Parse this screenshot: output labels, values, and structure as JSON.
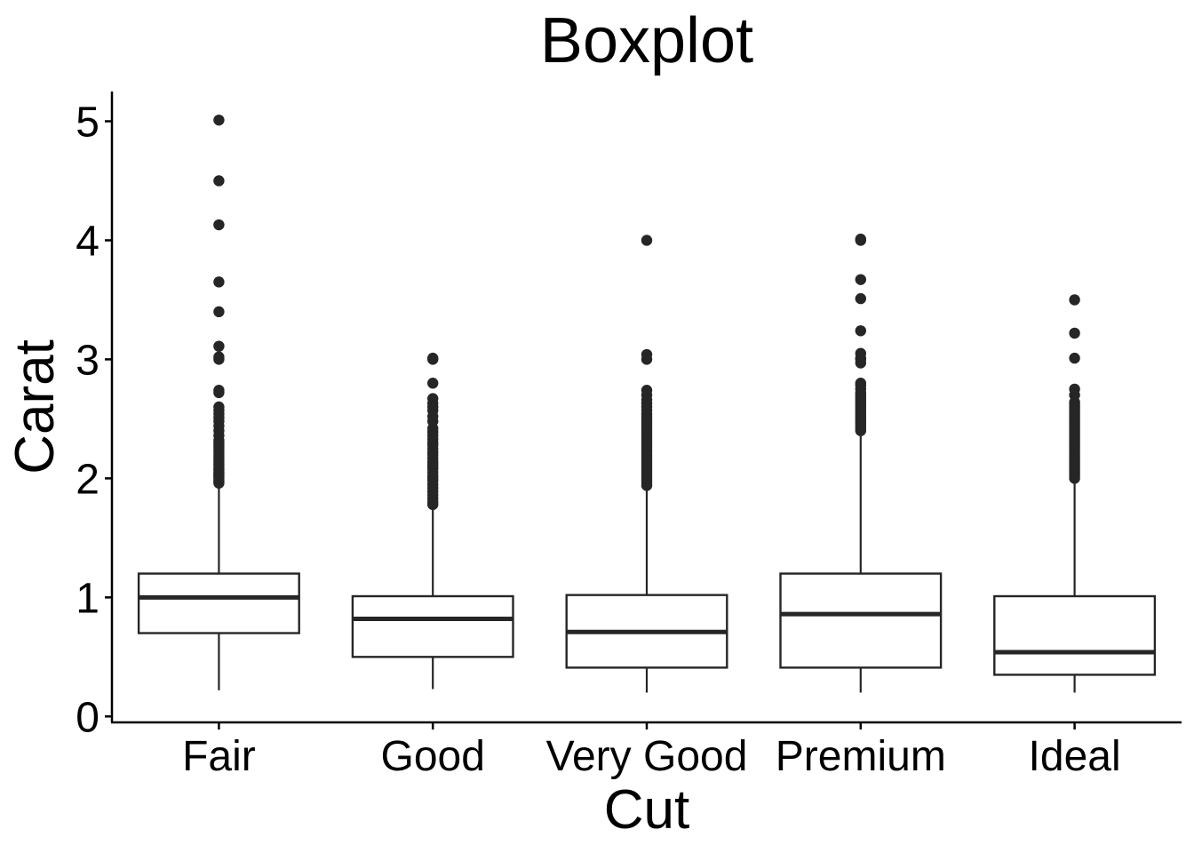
{
  "chart_data": {
    "type": "boxplot",
    "title": "Boxplot",
    "xlabel": "Cut",
    "ylabel": "Carat",
    "ylim": [
      -0.05,
      5.25
    ],
    "yticks": [
      0,
      1,
      2,
      3,
      4,
      5
    ],
    "grid": false,
    "legend": "none",
    "categories": [
      "Fair",
      "Good",
      "Very Good",
      "Premium",
      "Ideal"
    ],
    "boxes": [
      {
        "category": "Fair",
        "whisker_low": 0.22,
        "q1": 0.7,
        "median": 1.0,
        "q3": 1.2,
        "whisker_high": 1.95,
        "outliers": [
          1.96,
          1.97,
          1.98,
          2.0,
          2.01,
          2.02,
          2.03,
          2.04,
          2.05,
          2.07,
          2.08,
          2.1,
          2.12,
          2.14,
          2.16,
          2.18,
          2.2,
          2.22,
          2.24,
          2.26,
          2.28,
          2.3,
          2.32,
          2.36,
          2.4,
          2.44,
          2.48,
          2.51,
          2.54,
          2.57,
          2.6,
          2.72,
          2.74,
          3.0,
          3.02,
          3.11,
          3.4,
          3.65,
          4.13,
          4.5,
          5.01
        ]
      },
      {
        "category": "Good",
        "whisker_low": 0.23,
        "q1": 0.5,
        "median": 0.82,
        "q3": 1.01,
        "whisker_high": 1.77,
        "outliers": [
          1.78,
          1.8,
          1.83,
          1.86,
          1.89,
          1.92,
          1.95,
          1.98,
          2.0,
          2.02,
          2.05,
          2.08,
          2.1,
          2.12,
          2.14,
          2.17,
          2.2,
          2.22,
          2.25,
          2.28,
          2.3,
          2.33,
          2.36,
          2.39,
          2.42,
          2.48,
          2.52,
          2.57,
          2.6,
          2.63,
          2.67,
          2.8,
          3.0,
          3.01
        ]
      },
      {
        "category": "Very Good",
        "whisker_low": 0.2,
        "q1": 0.41,
        "median": 0.71,
        "q3": 1.02,
        "whisker_high": 1.93,
        "outliers": [
          1.94,
          1.96,
          1.98,
          2.0,
          2.02,
          2.04,
          2.06,
          2.08,
          2.1,
          2.12,
          2.14,
          2.16,
          2.18,
          2.2,
          2.22,
          2.24,
          2.26,
          2.28,
          2.3,
          2.32,
          2.34,
          2.36,
          2.38,
          2.4,
          2.42,
          2.44,
          2.46,
          2.48,
          2.5,
          2.52,
          2.54,
          2.57,
          2.6,
          2.63,
          2.66,
          2.7,
          2.74,
          3.0,
          3.04,
          4.0
        ]
      },
      {
        "category": "Premium",
        "whisker_low": 0.2,
        "q1": 0.41,
        "median": 0.86,
        "q3": 1.2,
        "whisker_high": 2.38,
        "outliers": [
          2.4,
          2.42,
          2.44,
          2.46,
          2.48,
          2.5,
          2.52,
          2.54,
          2.56,
          2.58,
          2.6,
          2.62,
          2.64,
          2.66,
          2.68,
          2.7,
          2.72,
          2.75,
          2.78,
          2.8,
          2.97,
          3.0,
          3.01,
          3.05,
          3.24,
          3.51,
          3.67,
          4.0,
          4.01
        ]
      },
      {
        "category": "Ideal",
        "whisker_low": 0.2,
        "q1": 0.35,
        "median": 0.54,
        "q3": 1.01,
        "whisker_high": 1.99,
        "outliers": [
          2.0,
          2.02,
          2.04,
          2.06,
          2.08,
          2.1,
          2.12,
          2.14,
          2.16,
          2.18,
          2.2,
          2.22,
          2.24,
          2.26,
          2.28,
          2.3,
          2.32,
          2.34,
          2.36,
          2.38,
          2.4,
          2.42,
          2.44,
          2.46,
          2.48,
          2.5,
          2.52,
          2.54,
          2.56,
          2.58,
          2.6,
          2.62,
          2.64,
          2.7,
          2.75,
          3.01,
          3.22,
          3.5
        ]
      }
    ],
    "colors": {
      "box_stroke": "#262626",
      "point_fill": "#262626",
      "axis": "#000000",
      "background": "#ffffff"
    }
  }
}
